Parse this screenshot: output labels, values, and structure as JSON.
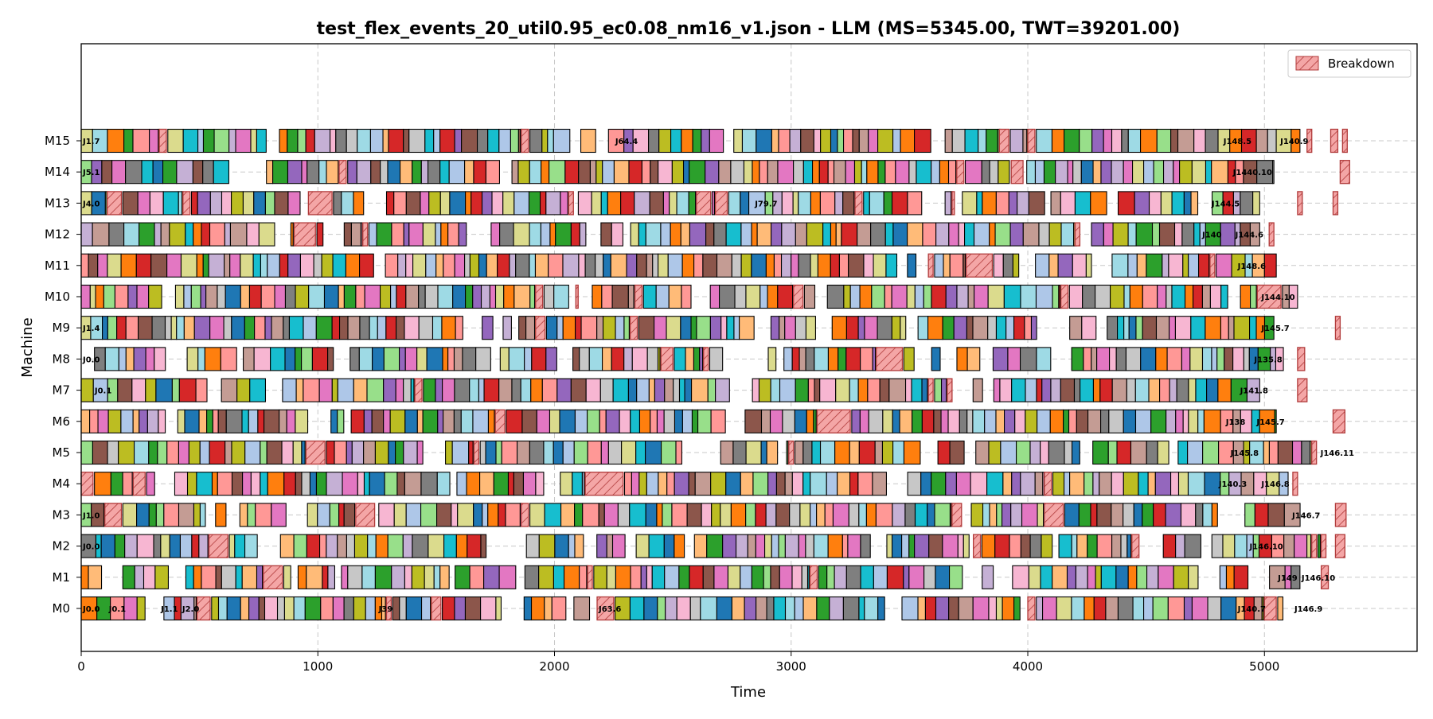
{
  "chart_data": {
    "type": "gantt",
    "title": "test_flex_events_20_util0.95_ec0.08_nm16_v1.json - LLM (MS=5345.00, TWT=39201.00)",
    "xlabel": "Time",
    "ylabel": "Machine",
    "xlim": [
      0,
      5645
    ],
    "x_ticks": [
      0,
      1000,
      2000,
      3000,
      4000,
      5000
    ],
    "x_tick_labels": [
      "0",
      "1000",
      "2000",
      "3000",
      "4000",
      "5000"
    ],
    "machines": [
      "M0",
      "M1",
      "M2",
      "M3",
      "M4",
      "M5",
      "M6",
      "M7",
      "M8",
      "M9",
      "M10",
      "M11",
      "M12",
      "M13",
      "M14",
      "M15"
    ],
    "grid": "dashed",
    "legend": {
      "position": "top-right",
      "entries": [
        {
          "name": "Breakdown",
          "color": "#f4a6a6",
          "hatch": true
        }
      ]
    },
    "makespan": 5345.0,
    "twt": 39201.0,
    "palette": [
      "#1f77b4",
      "#aec7e8",
      "#ff7f0e",
      "#ffbb78",
      "#2ca02c",
      "#98df8a",
      "#d62728",
      "#ff9896",
      "#9467bd",
      "#c5b0d5",
      "#8c564b",
      "#c49c94",
      "#e377c2",
      "#f7b6d2",
      "#7f7f7f",
      "#c7c7c7",
      "#bcbd22",
      "#dbdb8d",
      "#17becf",
      "#9edae5"
    ],
    "machine_windows": [
      {
        "machine": "M0",
        "start": 0,
        "end": 5080
      },
      {
        "machine": "M1",
        "start": 0,
        "end": 5150
      },
      {
        "machine": "M2",
        "start": 0,
        "end": 5240
      },
      {
        "machine": "M3",
        "start": 0,
        "end": 5180
      },
      {
        "machine": "M4",
        "start": 0,
        "end": 5100
      },
      {
        "machine": "M5",
        "start": 0,
        "end": 5200
      },
      {
        "machine": "M6",
        "start": 0,
        "end": 5050
      },
      {
        "machine": "M7",
        "start": 0,
        "end": 4980
      },
      {
        "machine": "M8",
        "start": 0,
        "end": 5080
      },
      {
        "machine": "M9",
        "start": 0,
        "end": 5040
      },
      {
        "machine": "M10",
        "start": 0,
        "end": 5140
      },
      {
        "machine": "M11",
        "start": 0,
        "end": 5050
      },
      {
        "machine": "M12",
        "start": 0,
        "end": 4980
      },
      {
        "machine": "M13",
        "start": 0,
        "end": 4980
      },
      {
        "machine": "M14",
        "start": 0,
        "end": 5040
      },
      {
        "machine": "M15",
        "start": 0,
        "end": 5150
      }
    ],
    "breakdowns": [
      {
        "machine": "M0",
        "start": 490,
        "end": 545
      },
      {
        "machine": "M0",
        "start": 1290,
        "end": 1310
      },
      {
        "machine": "M0",
        "start": 1480,
        "end": 1520
      },
      {
        "machine": "M0",
        "start": 2180,
        "end": 2250
      },
      {
        "machine": "M0",
        "start": 4000,
        "end": 4030
      },
      {
        "machine": "M0",
        "start": 5000,
        "end": 5050
      },
      {
        "machine": "M1",
        "start": 770,
        "end": 850
      },
      {
        "machine": "M1",
        "start": 2140,
        "end": 2160
      },
      {
        "machine": "M1",
        "start": 3080,
        "end": 3110
      },
      {
        "machine": "M1",
        "start": 5240,
        "end": 5270
      },
      {
        "machine": "M2",
        "start": 540,
        "end": 620
      },
      {
        "machine": "M2",
        "start": 3770,
        "end": 3800
      },
      {
        "machine": "M2",
        "start": 4440,
        "end": 4470
      },
      {
        "machine": "M2",
        "start": 5200,
        "end": 5220
      },
      {
        "machine": "M2",
        "start": 5240,
        "end": 5260
      },
      {
        "machine": "M2",
        "start": 5300,
        "end": 5340
      },
      {
        "machine": "M3",
        "start": 100,
        "end": 170
      },
      {
        "machine": "M3",
        "start": 1160,
        "end": 1240
      },
      {
        "machine": "M3",
        "start": 1860,
        "end": 1890
      },
      {
        "machine": "M3",
        "start": 3680,
        "end": 3720
      },
      {
        "machine": "M3",
        "start": 4070,
        "end": 4150
      },
      {
        "machine": "M3",
        "start": 5300,
        "end": 5345
      },
      {
        "machine": "M4",
        "start": 0,
        "end": 50
      },
      {
        "machine": "M4",
        "start": 220,
        "end": 270
      },
      {
        "machine": "M4",
        "start": 2130,
        "end": 2290
      },
      {
        "machine": "M4",
        "start": 4070,
        "end": 4100
      },
      {
        "machine": "M4",
        "start": 5120,
        "end": 5140
      },
      {
        "machine": "M5",
        "start": 950,
        "end": 1030
      },
      {
        "machine": "M5",
        "start": 1660,
        "end": 1680
      },
      {
        "machine": "M5",
        "start": 2990,
        "end": 3010
      },
      {
        "machine": "M5",
        "start": 5200,
        "end": 5220
      },
      {
        "machine": "M6",
        "start": 1750,
        "end": 1790
      },
      {
        "machine": "M6",
        "start": 3110,
        "end": 3250
      },
      {
        "machine": "M6",
        "start": 5290,
        "end": 5340
      },
      {
        "machine": "M7",
        "start": 1410,
        "end": 1440
      },
      {
        "machine": "M7",
        "start": 3580,
        "end": 3600
      },
      {
        "machine": "M7",
        "start": 3660,
        "end": 3680
      },
      {
        "machine": "M7",
        "start": 5140,
        "end": 5180
      },
      {
        "machine": "M8",
        "start": 2450,
        "end": 2500
      },
      {
        "machine": "M8",
        "start": 2630,
        "end": 2650
      },
      {
        "machine": "M8",
        "start": 3360,
        "end": 3470
      },
      {
        "machine": "M8",
        "start": 5140,
        "end": 5170
      },
      {
        "machine": "M9",
        "start": 1920,
        "end": 1960
      },
      {
        "machine": "M9",
        "start": 2320,
        "end": 2350
      },
      {
        "machine": "M9",
        "start": 5300,
        "end": 5320
      },
      {
        "machine": "M10",
        "start": 1920,
        "end": 1950
      },
      {
        "machine": "M10",
        "start": 2090,
        "end": 2100
      },
      {
        "machine": "M10",
        "start": 2340,
        "end": 2370
      },
      {
        "machine": "M10",
        "start": 3010,
        "end": 3050
      },
      {
        "machine": "M10",
        "start": 4140,
        "end": 4170
      },
      {
        "machine": "M10",
        "start": 4970,
        "end": 5070
      },
      {
        "machine": "M11",
        "start": 3580,
        "end": 3600
      },
      {
        "machine": "M11",
        "start": 3740,
        "end": 3850
      },
      {
        "machine": "M11",
        "start": 4770,
        "end": 4790
      },
      {
        "machine": "M12",
        "start": 900,
        "end": 990
      },
      {
        "machine": "M12",
        "start": 1190,
        "end": 1210
      },
      {
        "machine": "M12",
        "start": 4200,
        "end": 4220
      },
      {
        "machine": "M12",
        "start": 5020,
        "end": 5040
      },
      {
        "machine": "M13",
        "start": 110,
        "end": 170
      },
      {
        "machine": "M13",
        "start": 430,
        "end": 460
      },
      {
        "machine": "M13",
        "start": 960,
        "end": 1060
      },
      {
        "machine": "M13",
        "start": 2060,
        "end": 2080
      },
      {
        "machine": "M13",
        "start": 2600,
        "end": 2660
      },
      {
        "machine": "M13",
        "start": 2680,
        "end": 2730
      },
      {
        "machine": "M13",
        "start": 3270,
        "end": 3300
      },
      {
        "machine": "M13",
        "start": 3680,
        "end": 3690
      },
      {
        "machine": "M13",
        "start": 5140,
        "end": 5160
      },
      {
        "machine": "M13",
        "start": 5290,
        "end": 5310
      },
      {
        "machine": "M14",
        "start": 1090,
        "end": 1120
      },
      {
        "machine": "M14",
        "start": 3700,
        "end": 3730
      },
      {
        "machine": "M14",
        "start": 3930,
        "end": 3980
      },
      {
        "machine": "M14",
        "start": 5320,
        "end": 5360
      },
      {
        "machine": "M15",
        "start": 330,
        "end": 360
      },
      {
        "machine": "M15",
        "start": 1860,
        "end": 1890
      },
      {
        "machine": "M15",
        "start": 3880,
        "end": 3920
      },
      {
        "machine": "M15",
        "start": 4000,
        "end": 4030
      },
      {
        "machine": "M15",
        "start": 5180,
        "end": 5200
      },
      {
        "machine": "M15",
        "start": 5280,
        "end": 5310
      },
      {
        "machine": "M15",
        "start": 5330,
        "end": 5350
      }
    ],
    "operation_labels": [
      {
        "machine": "M0",
        "x": 0,
        "text": "J0.0"
      },
      {
        "machine": "M0",
        "x": 110,
        "text": "J0.1"
      },
      {
        "machine": "M0",
        "x": 330,
        "text": "J1.1"
      },
      {
        "machine": "M0",
        "x": 420,
        "text": "J2.0"
      },
      {
        "machine": "M0",
        "x": 1250,
        "text": "J39"
      },
      {
        "machine": "M0",
        "x": 2180,
        "text": "J63.6"
      },
      {
        "machine": "M0",
        "x": 4880,
        "text": "J140.7"
      },
      {
        "machine": "M0",
        "x": 5120,
        "text": "J146.9"
      },
      {
        "machine": "M1",
        "x": 5050,
        "text": "J149"
      },
      {
        "machine": "M1",
        "x": 5150,
        "text": "J146.10"
      },
      {
        "machine": "M2",
        "x": 0,
        "text": "J0.0"
      },
      {
        "machine": "M2",
        "x": 4930,
        "text": "J146.10"
      },
      {
        "machine": "M3",
        "x": 0,
        "text": "J1.0"
      },
      {
        "machine": "M3",
        "x": 5110,
        "text": "J146.7"
      },
      {
        "machine": "M4",
        "x": 4800,
        "text": "J140.3"
      },
      {
        "machine": "M4",
        "x": 4980,
        "text": "J146.8"
      },
      {
        "machine": "M5",
        "x": 4850,
        "text": "J145.8"
      },
      {
        "machine": "M5",
        "x": 5230,
        "text": "J146.11"
      },
      {
        "machine": "M6",
        "x": 4830,
        "text": "J138"
      },
      {
        "machine": "M6",
        "x": 4960,
        "text": "J145.7"
      },
      {
        "machine": "M7",
        "x": 50,
        "text": "J0.1"
      },
      {
        "machine": "M7",
        "x": 4890,
        "text": "J141.8"
      },
      {
        "machine": "M8",
        "x": 0,
        "text": "J0.0"
      },
      {
        "machine": "M8",
        "x": 4950,
        "text": "J135.8"
      },
      {
        "machine": "M9",
        "x": 0,
        "text": "J1.4"
      },
      {
        "machine": "M9",
        "x": 4980,
        "text": "J145.7"
      },
      {
        "machine": "M10",
        "x": 4980,
        "text": "J144.10"
      },
      {
        "machine": "M11",
        "x": 4880,
        "text": "J148.6"
      },
      {
        "machine": "M12",
        "x": 4730,
        "text": "J140"
      },
      {
        "machine": "M12",
        "x": 4870,
        "text": "J144.6"
      },
      {
        "machine": "M13",
        "x": 0,
        "text": "J4.0"
      },
      {
        "machine": "M13",
        "x": 2840,
        "text": "J79.7"
      },
      {
        "machine": "M13",
        "x": 4770,
        "text": "J144.5"
      },
      {
        "machine": "M14",
        "x": 0,
        "text": "J5.1"
      },
      {
        "machine": "M14",
        "x": 4860,
        "text": "J1440.10"
      },
      {
        "machine": "M15",
        "x": 0,
        "text": "J1.7"
      },
      {
        "machine": "M15",
        "x": 2250,
        "text": "J64.4"
      },
      {
        "machine": "M15",
        "x": 4820,
        "text": "J148.5"
      },
      {
        "machine": "M15",
        "x": 5060,
        "text": "J140.9"
      }
    ]
  }
}
